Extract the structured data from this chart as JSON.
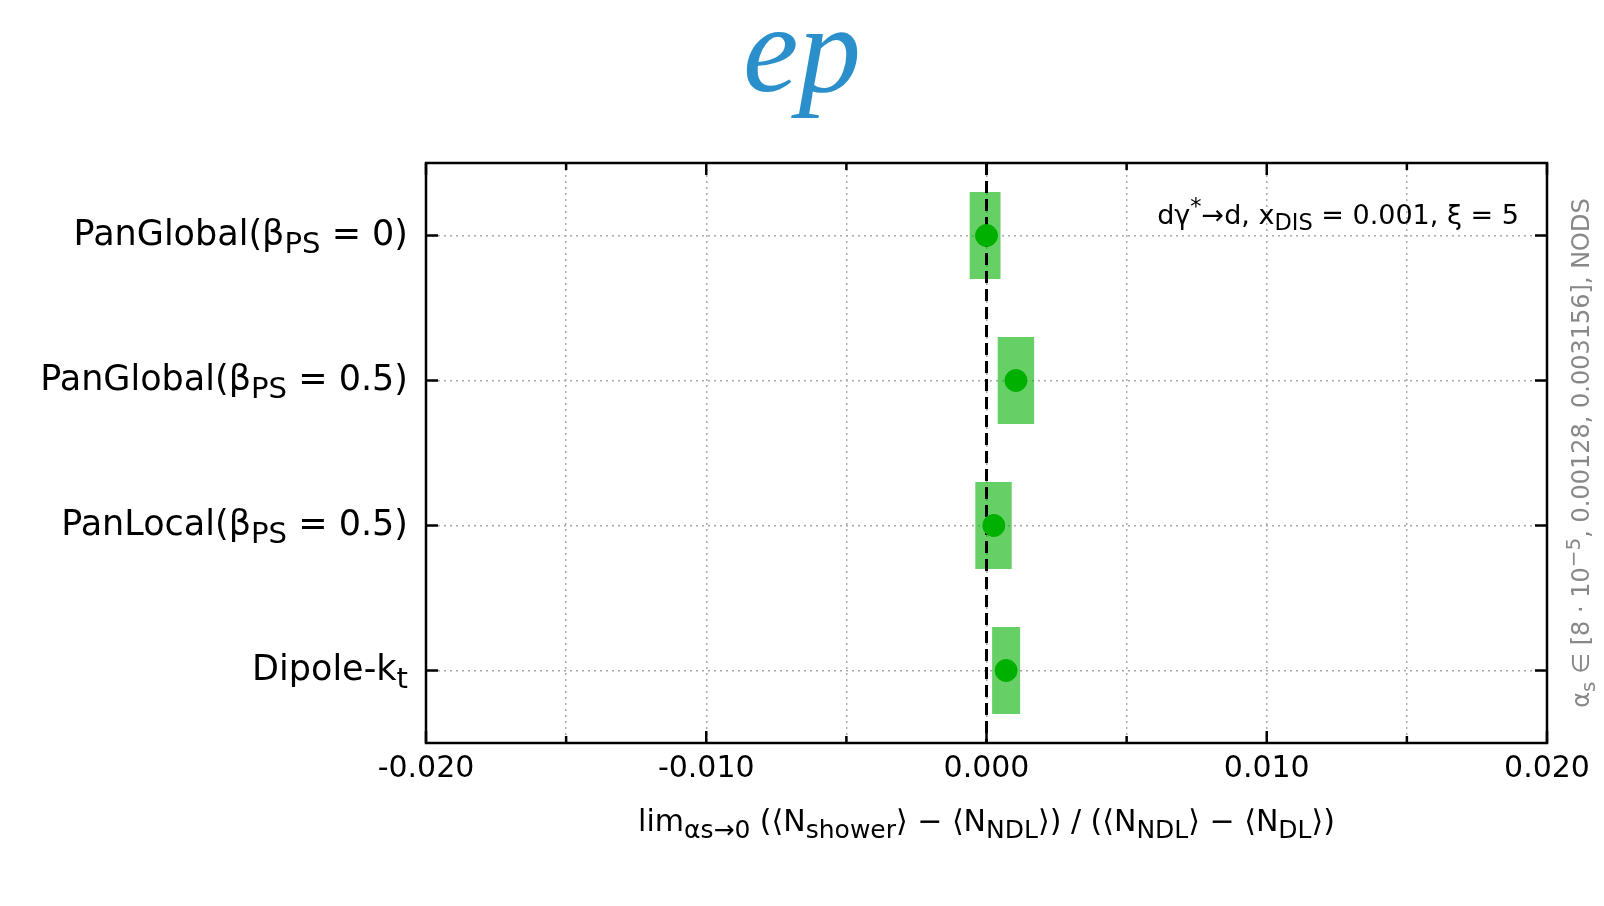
{
  "chart_data": {
    "type": "scatter",
    "title": "ep",
    "orientation": "horizontal",
    "categories": [
      "PanGlobal(β$_{PS}$ = 0)",
      "PanGlobal(β$_{PS}$ = 0.5)",
      "PanLocal(β$_{PS}$ = 0.5)",
      "Dipole-k$_{t}$"
    ],
    "series": [
      {
        "color": "#00b000",
        "values": [
          0.0,
          0.00105,
          0.00026,
          0.0007
        ],
        "errors": [
          [
            -0.0006,
            0.0005
          ],
          [
            0.0004,
            0.0017
          ],
          [
            -0.0004,
            0.0009
          ],
          [
            0.0002,
            0.0012
          ]
        ]
      }
    ],
    "xlim": [
      -0.02,
      0.02
    ],
    "xticks": [
      {
        "value": -0.02,
        "label": "-0.020"
      },
      {
        "value": -0.015,
        "label": null
      },
      {
        "value": -0.01,
        "label": "-0.010"
      },
      {
        "value": -0.005,
        "label": null
      },
      {
        "value": 0,
        "label": "0.000"
      },
      {
        "value": 0.005,
        "label": null
      },
      {
        "value": 0.01,
        "label": "0.010"
      },
      {
        "value": 0.015,
        "label": null
      },
      {
        "value": 0.02,
        "label": "0.020"
      }
    ],
    "xlabel": "lim$_{αs→0}$ (⟨N$_{shower}$⟩ − ⟨N$_{NDL}$⟩) / (⟨N$_{NDL}$⟩ − ⟨N$_{DL}$⟩)",
    "grid": true,
    "marker": "circle",
    "legend": false,
    "ref_lines": [
      {
        "axis": "x",
        "value": 0,
        "line_style": "dashed",
        "color": "#000000"
      }
    ],
    "annotations": [
      "dγ$^{*}$→d, x$_{DIS}$ = 0.001, ξ = 5",
      "α$_{s}$ ∈ [8 · 10$^{−5}$, 0.00128, 0.003156], NODS"
    ]
  }
}
